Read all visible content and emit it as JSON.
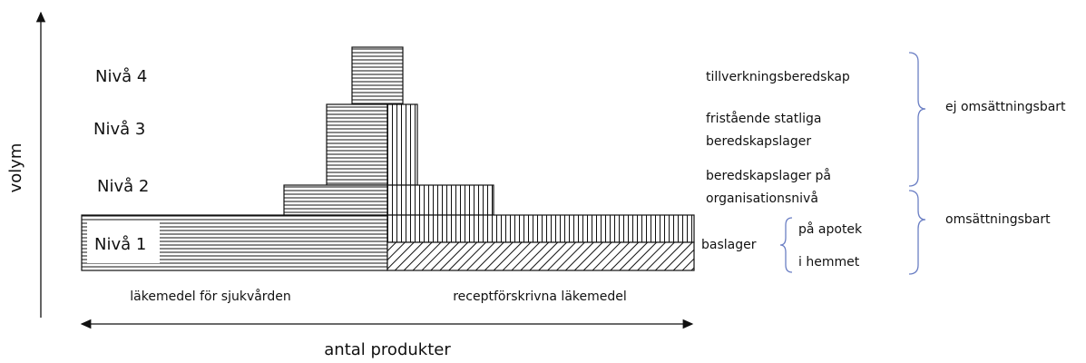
{
  "axes": {
    "y_label": "volym",
    "x_label": "antal produkter"
  },
  "levels": [
    "Nivå 4",
    "Nivå 3",
    "Nivå 2",
    "Nivå 1"
  ],
  "categories": [
    "läkemedel för sjukvården",
    "receptförskrivna läkemedel"
  ],
  "descriptions": {
    "level4": [
      "tillverkningsberedskap"
    ],
    "level3": [
      "fristående statliga",
      "beredskapslager"
    ],
    "level2": [
      "beredskapslager på",
      "organisationsnivå"
    ],
    "level1": {
      "label": "baslager",
      "parts": [
        "på apotek",
        "i hemmet"
      ]
    }
  },
  "groups": [
    "ej omsättningsbart",
    "omsättningsbart"
  ]
}
